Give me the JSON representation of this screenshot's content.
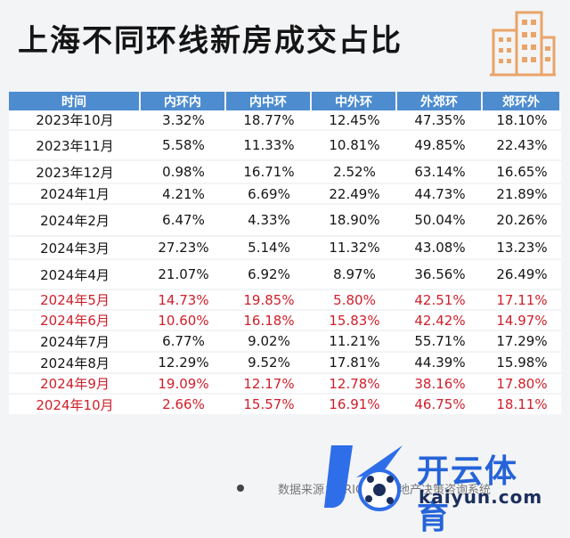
{
  "title": "上海不同环线新房成交占比",
  "headers": [
    "时间",
    "内环内",
    "内中环",
    "中外环",
    "外郊环",
    "郊环外"
  ],
  "rows": [
    {
      "cells": [
        "2023年10月",
        "3.32%",
        "18.77%",
        "12.45%",
        "47.35%",
        "18.10%"
      ],
      "highlight": false
    },
    {
      "cells": [
        "2023年11月",
        "5.58%",
        "11.33%",
        "10.81%",
        "49.85%",
        "22.43%"
      ],
      "highlight": false
    },
    {
      "cells": [
        "2023年12月",
        "0.98%",
        "16.71%",
        "2.52%",
        "63.14%",
        "16.65%"
      ],
      "highlight": false
    },
    {
      "cells": [
        "2024年1月",
        "4.21%",
        "6.69%",
        "22.49%",
        "44.73%",
        "21.89%"
      ],
      "highlight": false
    },
    {
      "cells": [
        "2024年2月",
        "6.47%",
        "4.33%",
        "18.90%",
        "50.04%",
        "20.26%"
      ],
      "highlight": false
    },
    {
      "cells": [
        "2024年3月",
        "27.23%",
        "5.14%",
        "11.32%",
        "43.08%",
        "13.23%"
      ],
      "highlight": false
    },
    {
      "cells": [
        "2024年4月",
        "21.07%",
        "6.92%",
        "8.97%",
        "36.56%",
        "26.49%"
      ],
      "highlight": false
    },
    {
      "cells": [
        "2024年5月",
        "14.73%",
        "19.85%",
        "5.80%",
        "42.51%",
        "17.11%"
      ],
      "highlight": true
    },
    {
      "cells": [
        "2024年6月",
        "10.60%",
        "16.18%",
        "15.83%",
        "42.42%",
        "14.97%"
      ],
      "highlight": true
    },
    {
      "cells": [
        "2024年7月",
        "6.77%",
        "9.02%",
        "11.21%",
        "55.71%",
        "17.29%"
      ],
      "highlight": false
    },
    {
      "cells": [
        "2024年8月",
        "12.29%",
        "9.52%",
        "17.81%",
        "44.39%",
        "15.98%"
      ],
      "highlight": false
    },
    {
      "cells": [
        "2024年9月",
        "19.09%",
        "12.17%",
        "12.78%",
        "38.16%",
        "17.80%"
      ],
      "highlight": true
    },
    {
      "cells": [
        "2024年10月",
        "2.66%",
        "15.57%",
        "16.91%",
        "46.75%",
        "18.11%"
      ],
      "highlight": true
    }
  ],
  "source_text": "数据来源：CRIC中国房地产决策咨询系统",
  "logo": {
    "name": "开云体育",
    "url": "kaiyun.com"
  },
  "colors": {
    "header_bg": "#4d8ccf",
    "highlight_text": "#cf1f2a",
    "logo_blue": "#2563d8",
    "building_orange": "#e9a469"
  }
}
